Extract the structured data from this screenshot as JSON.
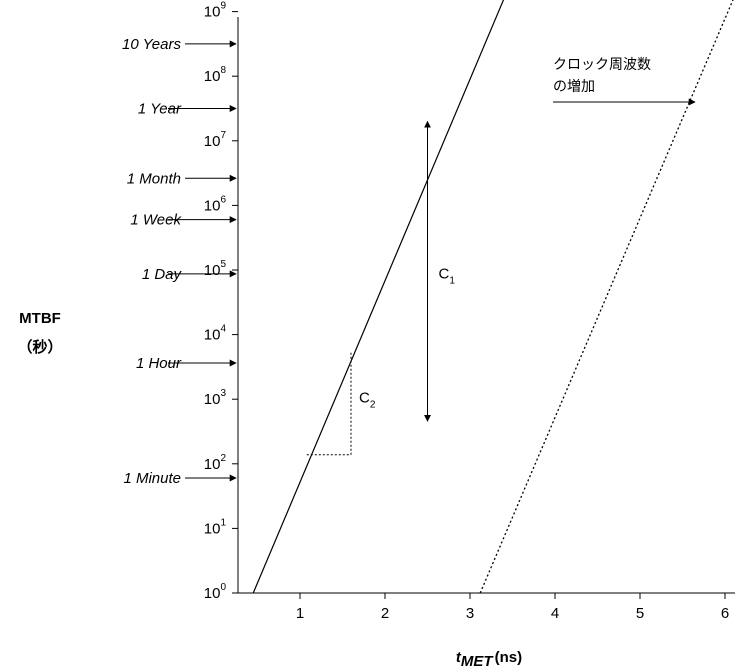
{
  "chart_data": {
    "type": "line",
    "x_axis": {
      "label_symbol": "t",
      "label_subscript": "MET",
      "label_unit": "(ns)",
      "range": [
        0.35,
        6.2
      ],
      "ticks": [
        "1",
        "2",
        "3",
        "4",
        "5",
        "6"
      ]
    },
    "y_axis": {
      "label_line1": "MTBF",
      "label_line2": "（秒）",
      "scale": "log10",
      "range_exp": [
        0,
        9
      ],
      "ticks": [
        {
          "base": "10",
          "exp": "0"
        },
        {
          "base": "10",
          "exp": "1"
        },
        {
          "base": "10",
          "exp": "2"
        },
        {
          "base": "10",
          "exp": "3"
        },
        {
          "base": "10",
          "exp": "4"
        },
        {
          "base": "10",
          "exp": "5"
        },
        {
          "base": "10",
          "exp": "6"
        },
        {
          "base": "10",
          "exp": "7"
        },
        {
          "base": "10",
          "exp": "8"
        },
        {
          "base": "10",
          "exp": "9"
        }
      ]
    },
    "time_markers": [
      {
        "label": "10 Years",
        "log_seconds": 8.5
      },
      {
        "label": "1 Year",
        "log_seconds": 7.5
      },
      {
        "label": "1 Month",
        "log_seconds": 6.42
      },
      {
        "label": "1 Week",
        "log_seconds": 5.78
      },
      {
        "label": "1 Day",
        "log_seconds": 4.94
      },
      {
        "label": "1 Hour",
        "log_seconds": 3.56
      },
      {
        "label": "1 Minute",
        "log_seconds": 1.78
      }
    ],
    "series": [
      {
        "style": "solid",
        "points": [
          [
            0.45,
            0
          ],
          [
            3.4,
            9.2
          ]
        ]
      },
      {
        "style": "dotted",
        "points": [
          [
            3.12,
            0
          ],
          [
            6.1,
            9.2
          ]
        ]
      }
    ],
    "annotations": {
      "c1": {
        "label": "C",
        "subscript": "1",
        "x": 2.5,
        "log_range": [
          2.66,
          7.3
        ]
      },
      "c2": {
        "label": "C",
        "subscript": "2",
        "x_range": [
          1.08,
          1.6
        ],
        "log_range": [
          2.14,
          3.75
        ]
      },
      "clock": {
        "line1": "クロック周波数",
        "line2": "の増加"
      }
    }
  }
}
